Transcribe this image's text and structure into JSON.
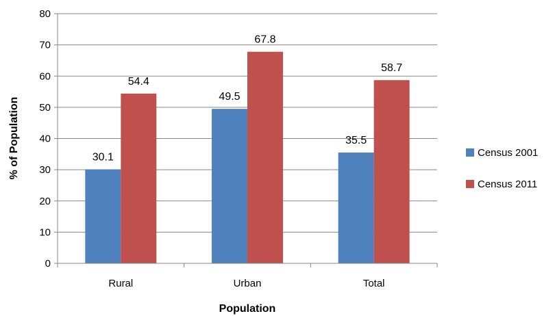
{
  "chart_data": {
    "type": "bar",
    "title": "",
    "xlabel": "Population",
    "ylabel": "% of Population",
    "categories": [
      "Rural",
      "Urban",
      "Total"
    ],
    "series": [
      {
        "name": "Census 2001",
        "values": [
          30.1,
          49.5,
          35.5
        ],
        "color": "#4F81BD"
      },
      {
        "name": "Census 2011",
        "values": [
          54.4,
          67.8,
          58.7
        ],
        "color": "#C0504D"
      }
    ],
    "ylim": [
      0,
      80
    ],
    "yticks": [
      0,
      10,
      20,
      30,
      40,
      50,
      60,
      70,
      80
    ],
    "value_labels": [
      "30.1",
      "49.5",
      "35.5",
      "54.4",
      "67.8",
      "58.7"
    ],
    "grid": true,
    "legend": "right"
  }
}
